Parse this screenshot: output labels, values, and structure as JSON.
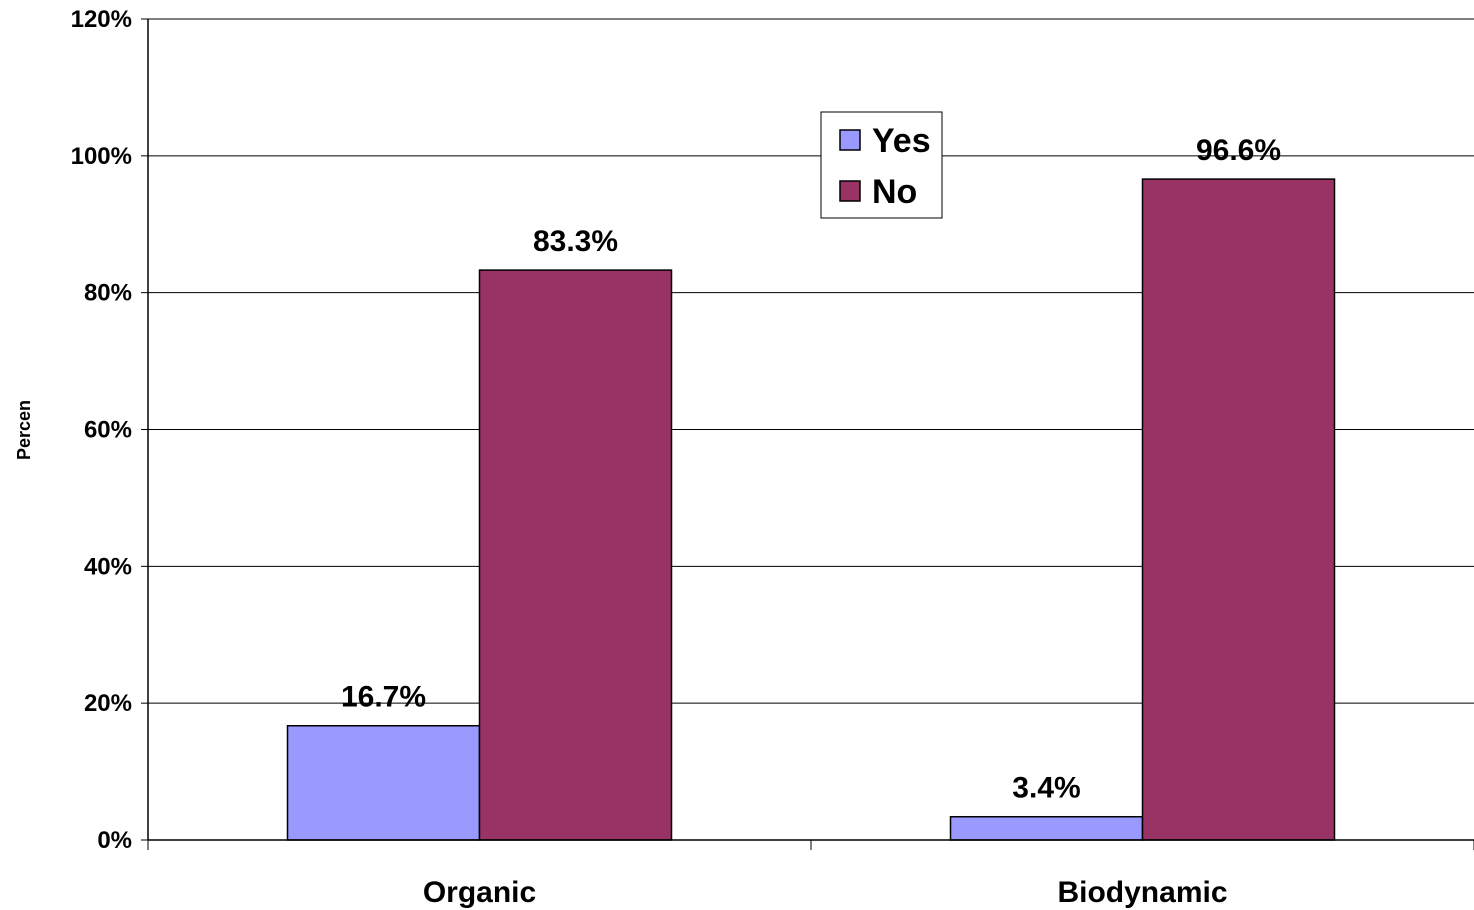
{
  "chart_data": {
    "type": "bar",
    "categories": [
      "Organic",
      "Biodynamic"
    ],
    "series": [
      {
        "name": "Yes",
        "values": [
          16.7,
          3.4
        ],
        "labels": [
          "16.7%",
          "3.4%"
        ],
        "color": "#9999FF"
      },
      {
        "name": "No",
        "values": [
          83.3,
          96.6
        ],
        "labels": [
          "83.3%",
          "96.6%"
        ],
        "color": "#993366"
      }
    ],
    "ylabel": "Percen",
    "xlabel": "",
    "ylim": [
      0,
      120
    ],
    "yticks": [
      0,
      20,
      40,
      60,
      80,
      100,
      120
    ],
    "ytick_labels": [
      "0%",
      "20%",
      "40%",
      "60%",
      "80%",
      "100%",
      "120%"
    ],
    "grid": true,
    "legend_position": "top-center"
  }
}
